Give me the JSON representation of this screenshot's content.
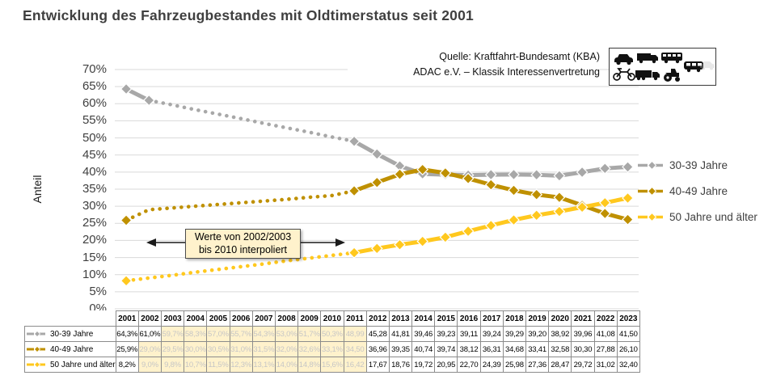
{
  "title": "Entwicklung des Fahrzeugbestandes mit Oldtimerstatus seit 2001",
  "source": {
    "line1": "Quelle: Kraftfahrt-Bundesamt (KBA)",
    "line2": "ADAC e.V. – Klassik Interessenvertretung"
  },
  "icon_box": {
    "icons": [
      "car-icon",
      "motorcycle-icon",
      "box-van-icon",
      "semi-truck-icon",
      "bus-icon",
      "tractor-icon",
      "minibus-icon",
      "ghost-car-icon"
    ]
  },
  "colors": {
    "grid": "#d9d9d9",
    "axis_text": "#3f3f3f",
    "title_text": "#3f3f3f",
    "highlight_bg": "#fff2cc",
    "highlight_text": "#c6c6c6",
    "table_border": "#8c8c8c",
    "annotation_bg": "#fff2cc",
    "annotation_border": "#4d4d4d",
    "arrow": "#1a1a1a",
    "series_gray": "#a8a8a8",
    "series_dark_gold": "#bf9000",
    "series_yellow": "#ffc81e"
  },
  "chart_data": {
    "type": "line",
    "title": "Entwicklung des Fahrzeugbestandes mit Oldtimerstatus seit 2001",
    "xlabel": "",
    "ylabel": "Anteil",
    "ylim": [
      0,
      70
    ],
    "ytick_step": 5,
    "yticks": [
      "70%",
      "65%",
      "60%",
      "55%",
      "50%",
      "45%",
      "40%",
      "35%",
      "30%",
      "25%",
      "20%",
      "15%",
      "10%",
      "5%",
      "0%"
    ],
    "grid": true,
    "legend_position": "right",
    "x": [
      2001,
      2002,
      2003,
      2004,
      2005,
      2006,
      2007,
      2008,
      2009,
      2010,
      2011,
      2012,
      2013,
      2014,
      2015,
      2016,
      2017,
      2018,
      2019,
      2020,
      2021,
      2022,
      2023
    ],
    "series": [
      {
        "name": "30-39 Jahre",
        "color": "#a8a8a8",
        "values": [
          64.3,
          61.0,
          59.7,
          58.3,
          57.0,
          55.7,
          54.3,
          53.0,
          51.7,
          50.3,
          48.99,
          45.28,
          41.81,
          39.46,
          39.23,
          39.11,
          39.24,
          39.29,
          39.2,
          38.92,
          39.96,
          41.08,
          41.5
        ],
        "real_markers_until_index": 1,
        "interpolated_until_index": 10
      },
      {
        "name": "40-49 Jahre",
        "color": "#bf9000",
        "values": [
          25.9,
          29.0,
          29.5,
          30.0,
          30.5,
          31.0,
          31.5,
          32.0,
          32.6,
          33.1,
          34.5,
          36.96,
          39.35,
          40.74,
          39.74,
          38.12,
          36.31,
          34.68,
          33.41,
          32.58,
          30.3,
          27.88,
          26.1
        ],
        "real_markers_until_index": 0,
        "interpolated_until_index": 10
      },
      {
        "name": "50 Jahre und älter",
        "color": "#ffc81e",
        "values": [
          8.2,
          9.0,
          9.8,
          10.7,
          11.5,
          12.3,
          13.1,
          14.0,
          14.8,
          15.6,
          16.42,
          17.67,
          18.76,
          19.72,
          20.95,
          22.7,
          24.39,
          25.98,
          27.36,
          28.47,
          29.72,
          31.02,
          32.4
        ],
        "real_markers_until_index": 0,
        "interpolated_until_index": 10
      }
    ],
    "annotation": {
      "line1": "Werte von 2002/2003",
      "line2": "bis 2010 interpoliert",
      "arrow_span_years": [
        2002,
        2011
      ]
    }
  },
  "table": {
    "header_years": [
      "2001",
      "2002",
      "2003",
      "2004",
      "2005",
      "2006",
      "2007",
      "2008",
      "2009",
      "2010",
      "2011",
      "2012",
      "2013",
      "2014",
      "2015",
      "2016",
      "2017",
      "2018",
      "2019",
      "2020",
      "2021",
      "2022",
      "2023"
    ],
    "rows": [
      {
        "label": "30-39 Jahre",
        "values": [
          "64,3%",
          "61,0%",
          "59,7%",
          "58,3%",
          "57,0%",
          "55,7%",
          "54,3%",
          "53,0%",
          "51,7%",
          "50,3%",
          "48,99",
          "45,28",
          "41,81",
          "39,46",
          "39,23",
          "39,11",
          "39,24",
          "39,29",
          "39,20",
          "38,92",
          "39,96",
          "41,08",
          "41,50"
        ],
        "highlight_from": 2,
        "highlight_to": 10
      },
      {
        "label": "40-49 Jahre",
        "values": [
          "25,9%",
          "29,0%",
          "29,5%",
          "30,0%",
          "30,5%",
          "31,0%",
          "31,5%",
          "32,0%",
          "32,6%",
          "33,1%",
          "34,50",
          "36,96",
          "39,35",
          "40,74",
          "39,74",
          "38,12",
          "36,31",
          "34,68",
          "33,41",
          "32,58",
          "30,30",
          "27,88",
          "26,10"
        ],
        "highlight_from": 1,
        "highlight_to": 10
      },
      {
        "label": "50 Jahre und älter",
        "values": [
          "8,2%",
          "9,0%",
          "9,8%",
          "10,7%",
          "11,5%",
          "12,3%",
          "13,1%",
          "14,0%",
          "14,8%",
          "15,6%",
          "16,42",
          "17,67",
          "18,76",
          "19,72",
          "20,95",
          "22,70",
          "24,39",
          "25,98",
          "27,36",
          "28,47",
          "29,72",
          "31,02",
          "32,40"
        ],
        "highlight_from": 1,
        "highlight_to": 10
      }
    ]
  }
}
